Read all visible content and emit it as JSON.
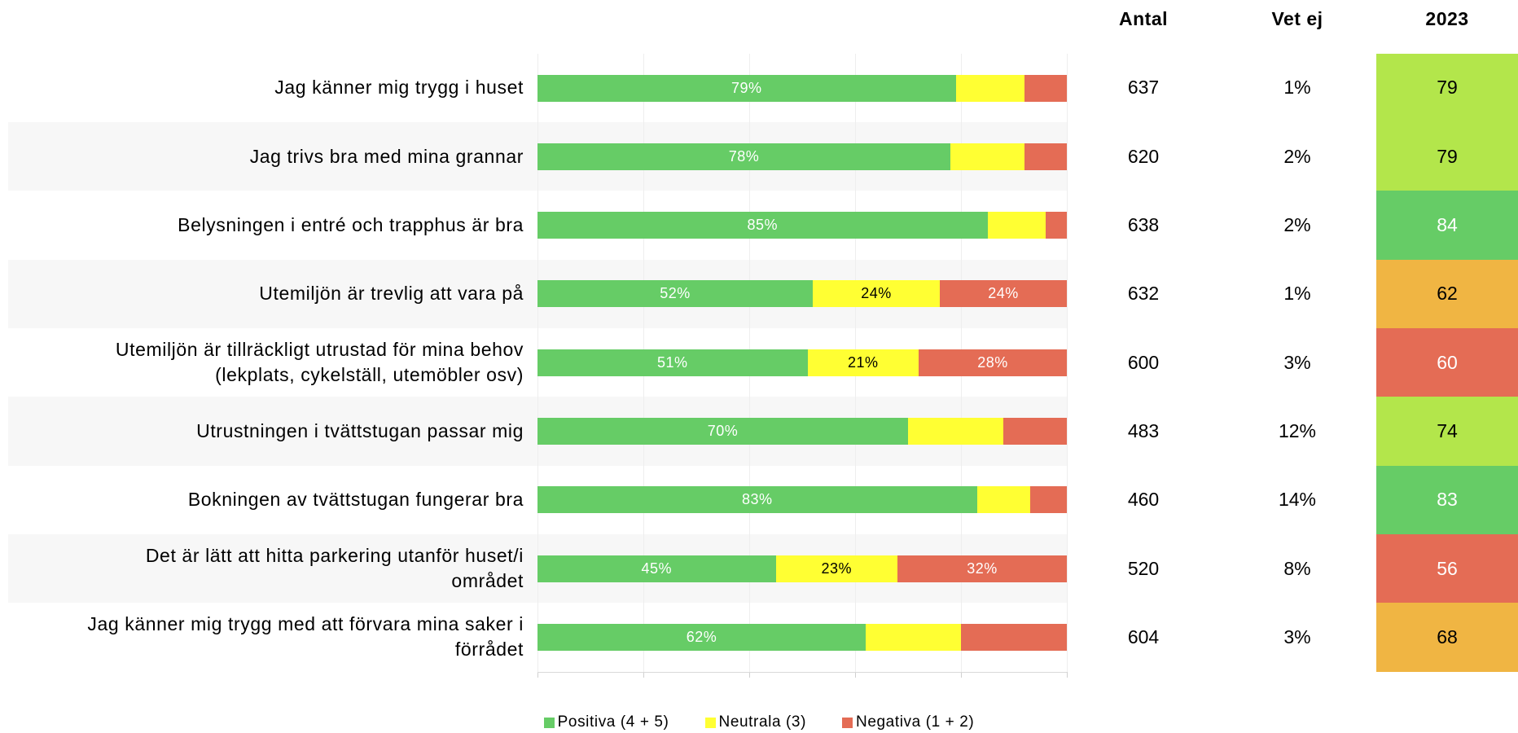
{
  "chart_data": {
    "type": "bar",
    "orientation": "horizontal",
    "stacked": true,
    "categories": [
      "Jag känner mig trygg i huset",
      "Jag trivs bra med mina grannar",
      "Belysningen i entré och trapphus är bra",
      "Utemiljön är trevlig att vara på",
      "Utemiljön är tillräckligt utrustad för mina behov\n(lekplats, cykelställ, utemöbler osv)",
      "Utrustningen i tvättstugan passar mig",
      "Bokningen av tvättstugan fungerar bra",
      "Det är lätt att hitta parkering utanför huset/i\nområdet",
      "Jag känner mig trygg med att förvara mina saker i\nförrådet"
    ],
    "series": [
      {
        "name": "Positiva (4 + 5)",
        "color": "#66cc66",
        "label_color": "#ffffff",
        "values": [
          79,
          78,
          85,
          52,
          51,
          70,
          83,
          45,
          62
        ],
        "value_labels": [
          "79%",
          "78%",
          "85%",
          "52%",
          "51%",
          "70%",
          "83%",
          "45%",
          "62%"
        ]
      },
      {
        "name": "Neutrala (3)",
        "color": "#ffff33",
        "label_color": "#000000",
        "values": [
          13,
          14,
          11,
          24,
          21,
          18,
          10,
          23,
          18
        ],
        "value_labels": [
          null,
          null,
          null,
          "24%",
          "21%",
          null,
          null,
          "23%",
          null
        ]
      },
      {
        "name": "Negativa (1 + 2)",
        "color": "#e46c55",
        "label_color": "#ffffff",
        "values": [
          8,
          8,
          4,
          24,
          28,
          12,
          7,
          32,
          20
        ],
        "value_labels": [
          null,
          null,
          null,
          "24%",
          "28%",
          null,
          null,
          "32%",
          null
        ]
      }
    ],
    "xlim": [
      0,
      100
    ],
    "xticks": [
      0,
      20,
      40,
      60,
      80,
      100
    ],
    "columns": [
      {
        "header": "Antal",
        "values": [
          637,
          620,
          638,
          632,
          600,
          483,
          460,
          520,
          604
        ]
      },
      {
        "header": "Vet ej",
        "values": [
          "1%",
          "2%",
          "2%",
          "1%",
          "3%",
          "12%",
          "14%",
          "8%",
          "3%"
        ]
      },
      {
        "header": "2023",
        "values": [
          79,
          79,
          84,
          62,
          60,
          74,
          83,
          56,
          68
        ],
        "colors": [
          "#b3e64b",
          "#b3e64b",
          "#66cc66",
          "#f0b543",
          "#e46c55",
          "#b3e64b",
          "#66cc66",
          "#e46c55",
          "#f0b543"
        ],
        "text_colors": [
          "#000000",
          "#000000",
          "#ffffff",
          "#000000",
          "#ffffff",
          "#000000",
          "#ffffff",
          "#ffffff",
          "#000000"
        ]
      }
    ]
  }
}
